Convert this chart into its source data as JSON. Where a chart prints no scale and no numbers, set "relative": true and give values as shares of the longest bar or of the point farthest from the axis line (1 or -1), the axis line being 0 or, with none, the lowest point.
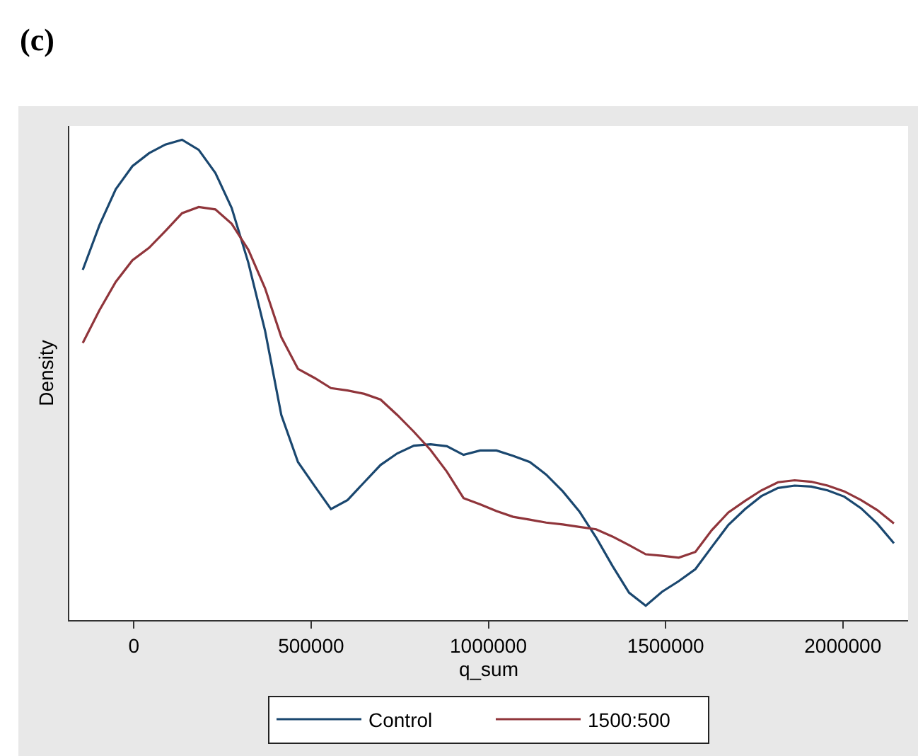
{
  "chart_data": {
    "type": "line",
    "title": "(c)",
    "xlabel": "q_sum",
    "ylabel": "Density",
    "relative": true,
    "x": [
      -144000,
      -97000,
      -51000,
      -4000,
      43000,
      89000,
      136000,
      183000,
      230000,
      276000,
      323000,
      370000,
      416000,
      463000,
      510000,
      556000,
      603000,
      650000,
      696000,
      743000,
      790000,
      837000,
      883000,
      930000,
      977000,
      1023000,
      1070000,
      1117000,
      1163000,
      1210000,
      1257000,
      1304000,
      1350000,
      1397000,
      1444000,
      1490000,
      1537000,
      1584000,
      1630000,
      1677000,
      1724000,
      1770000,
      1817000,
      1864000,
      1911000,
      1957000,
      2004000,
      2051000,
      2097000,
      2144000
    ],
    "xlim": [
      -182000,
      2184000
    ],
    "xticks": [
      0,
      500000,
      1000000,
      1500000,
      2000000
    ],
    "series": [
      {
        "name": "Control",
        "color": "#1a476f",
        "values": [
          0.729,
          0.822,
          0.897,
          0.945,
          0.972,
          0.99,
          1.0,
          0.979,
          0.931,
          0.858,
          0.744,
          0.603,
          0.427,
          0.329,
          0.279,
          0.231,
          0.25,
          0.287,
          0.323,
          0.347,
          0.363,
          0.366,
          0.362,
          0.344,
          0.353,
          0.353,
          0.342,
          0.329,
          0.303,
          0.268,
          0.226,
          0.172,
          0.113,
          0.057,
          0.03,
          0.059,
          0.081,
          0.106,
          0.152,
          0.198,
          0.231,
          0.258,
          0.275,
          0.28,
          0.278,
          0.27,
          0.257,
          0.233,
          0.201,
          0.16
        ]
      },
      {
        "name": "1500:500",
        "color": "#90353b",
        "values": [
          0.577,
          0.645,
          0.704,
          0.749,
          0.775,
          0.81,
          0.847,
          0.86,
          0.855,
          0.825,
          0.771,
          0.691,
          0.589,
          0.523,
          0.504,
          0.483,
          0.478,
          0.471,
          0.459,
          0.427,
          0.392,
          0.354,
          0.309,
          0.254,
          0.241,
          0.227,
          0.215,
          0.209,
          0.203,
          0.199,
          0.194,
          0.189,
          0.174,
          0.156,
          0.137,
          0.134,
          0.13,
          0.142,
          0.187,
          0.224,
          0.248,
          0.27,
          0.287,
          0.291,
          0.288,
          0.28,
          0.268,
          0.25,
          0.229,
          0.201
        ]
      }
    ],
    "legend": "bottom",
    "grid": false,
    "tick_labels": "x",
    "line_style": "solid"
  }
}
